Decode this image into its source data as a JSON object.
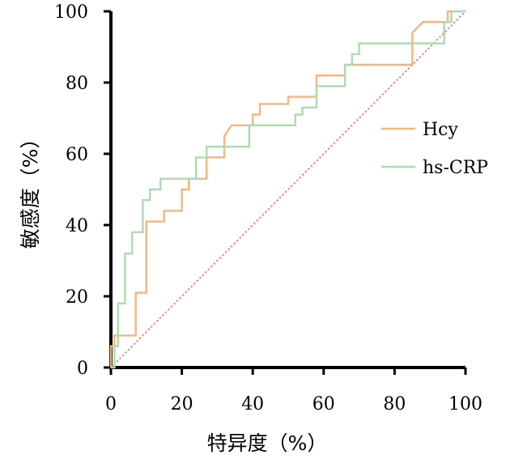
{
  "chart_data": {
    "type": "line",
    "title": "",
    "xlabel": "特异度（%）",
    "ylabel": "敏感度（%）",
    "xlim": [
      0,
      100
    ],
    "ylim": [
      0,
      100
    ],
    "x_ticks": [
      0,
      20,
      40,
      60,
      80,
      100
    ],
    "y_ticks": [
      0,
      20,
      40,
      60,
      80,
      100
    ],
    "legend": "right",
    "grid": false,
    "series": [
      {
        "name": "Hcy",
        "color": "#f6b47e",
        "points": [
          [
            0,
            0
          ],
          [
            0,
            6
          ],
          [
            1,
            6
          ],
          [
            1,
            9
          ],
          [
            7,
            9
          ],
          [
            7,
            21
          ],
          [
            10,
            21
          ],
          [
            10,
            41
          ],
          [
            15,
            41
          ],
          [
            15,
            44
          ],
          [
            20,
            44
          ],
          [
            20,
            50
          ],
          [
            22,
            50
          ],
          [
            22,
            53
          ],
          [
            27,
            53
          ],
          [
            27,
            59
          ],
          [
            32,
            59
          ],
          [
            32,
            65
          ],
          [
            34,
            68
          ],
          [
            40,
            68
          ],
          [
            40,
            71
          ],
          [
            42,
            71
          ],
          [
            42,
            74
          ],
          [
            50,
            74
          ],
          [
            50,
            76
          ],
          [
            58,
            76
          ],
          [
            58,
            82
          ],
          [
            66,
            82
          ],
          [
            66,
            85
          ],
          [
            85,
            85
          ],
          [
            85,
            94
          ],
          [
            88,
            97
          ],
          [
            95,
            97
          ],
          [
            95,
            100
          ],
          [
            100,
            100
          ]
        ]
      },
      {
        "name": "hs-CRP",
        "color": "#a9dcae",
        "points": [
          [
            0,
            0
          ],
          [
            1,
            0
          ],
          [
            1,
            6
          ],
          [
            2,
            6
          ],
          [
            2,
            18
          ],
          [
            4,
            18
          ],
          [
            4,
            32
          ],
          [
            6,
            32
          ],
          [
            6,
            38
          ],
          [
            9,
            38
          ],
          [
            9,
            47
          ],
          [
            11,
            47
          ],
          [
            11,
            50
          ],
          [
            14,
            50
          ],
          [
            14,
            53
          ],
          [
            24,
            53
          ],
          [
            24,
            59
          ],
          [
            27,
            59
          ],
          [
            27,
            62
          ],
          [
            39,
            62
          ],
          [
            39,
            68
          ],
          [
            52,
            68
          ],
          [
            52,
            71
          ],
          [
            54,
            71
          ],
          [
            54,
            73
          ],
          [
            58,
            73
          ],
          [
            58,
            79
          ],
          [
            66,
            79
          ],
          [
            66,
            85
          ],
          [
            68,
            85
          ],
          [
            68,
            88
          ],
          [
            70,
            88
          ],
          [
            70,
            91
          ],
          [
            94,
            91
          ],
          [
            94,
            97
          ],
          [
            96,
            97
          ],
          [
            96,
            100
          ],
          [
            100,
            100
          ]
        ]
      }
    ],
    "reference_line": {
      "color": "#f07b7b",
      "points": [
        [
          0,
          0
        ],
        [
          100,
          100
        ]
      ]
    }
  },
  "labels": {
    "x_axis_title": "特异度（%）",
    "y_axis_title": "敏感度（%）",
    "legend_hcy": "Hcy",
    "legend_hscrp": "hs-CRP"
  }
}
